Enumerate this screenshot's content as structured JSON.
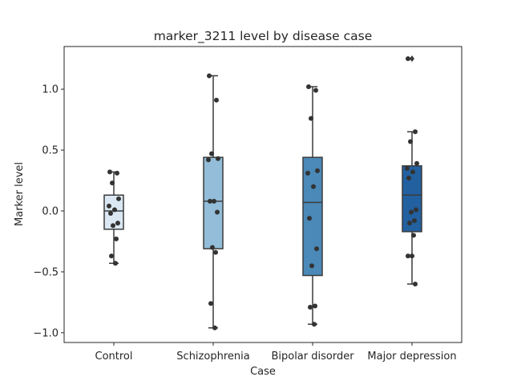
{
  "chart_data": {
    "type": "box",
    "title": "marker_3211 level by disease case",
    "xlabel": "Case",
    "ylabel": "Marker level",
    "ylim": [
      -1.08,
      1.35
    ],
    "yticks": [
      -1.0,
      -0.5,
      0.0,
      0.5,
      1.0
    ],
    "ytick_labels": [
      "−1.0",
      "−0.5",
      "0.0",
      "0.5",
      "1.0"
    ],
    "grid": false,
    "categories": [
      "Control",
      "Schizophrenia",
      "Bipolar disorder",
      "Major depression"
    ],
    "colors": [
      "#dbe8f4",
      "#93bdd9",
      "#4a89b8",
      "#2260a0"
    ],
    "edge_color": "#3b3b3b",
    "point_color": "#333333",
    "boxes": [
      {
        "q1": -0.15,
        "median": 0.0,
        "q3": 0.13,
        "whisker_low": -0.43,
        "whisker_high": 0.32,
        "outliers": []
      },
      {
        "q1": -0.31,
        "median": 0.08,
        "q3": 0.44,
        "whisker_low": -0.96,
        "whisker_high": 1.11,
        "outliers": []
      },
      {
        "q1": -0.53,
        "median": 0.07,
        "q3": 0.44,
        "whisker_low": -0.93,
        "whisker_high": 1.02,
        "outliers": []
      },
      {
        "q1": -0.17,
        "median": 0.13,
        "q3": 0.37,
        "whisker_low": -0.6,
        "whisker_high": 0.65,
        "outliers": [
          1.25
        ]
      }
    ],
    "points": [
      [
        0.32,
        0.31,
        0.23,
        0.1,
        0.04,
        0.01,
        -0.02,
        -0.1,
        -0.12,
        -0.23,
        -0.37,
        -0.43
      ],
      [
        1.11,
        0.91,
        0.47,
        0.43,
        0.42,
        0.08,
        0.08,
        -0.01,
        -0.3,
        -0.34,
        -0.76,
        -0.96
      ],
      [
        1.02,
        0.99,
        0.76,
        0.33,
        0.31,
        0.2,
        -0.06,
        -0.31,
        -0.45,
        -0.78,
        -0.79,
        -0.93
      ],
      [
        1.25,
        0.65,
        0.57,
        0.39,
        0.35,
        0.32,
        0.27,
        0.01,
        -0.01,
        -0.08,
        -0.1,
        -0.2,
        -0.37,
        -0.37,
        -0.6
      ]
    ]
  }
}
